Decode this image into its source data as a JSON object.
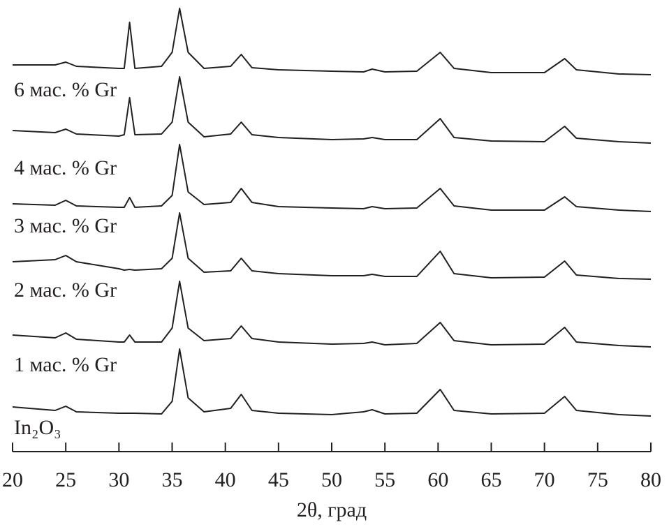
{
  "chart_data": {
    "type": "line",
    "x_label": "2θ, град",
    "xlim": [
      20,
      80
    ],
    "xticks": [
      20,
      25,
      30,
      35,
      40,
      45,
      50,
      55,
      60,
      65,
      70,
      75,
      80
    ],
    "ylim": [
      0,
      647
    ],
    "x": [
      20,
      24,
      25,
      26,
      30,
      30.5,
      31,
      31.5,
      34,
      35,
      35.7,
      36.5,
      38,
      40.5,
      41.5,
      42.5,
      45,
      50,
      53,
      53.8,
      55,
      58,
      60.2,
      61.5,
      65,
      70,
      71.9,
      73,
      77,
      80
    ],
    "series": [
      {
        "name": "6 мас. % Gr",
        "color": "#231f20",
        "values": [
          554,
          554,
          558,
          552,
          549,
          549,
          615,
          549,
          552,
          572,
          635,
          572,
          549,
          552,
          569,
          550,
          547,
          545,
          544,
          548,
          544,
          545,
          572,
          549,
          543,
          543,
          563,
          547,
          541,
          540
        ]
      },
      {
        "name": "4 мас. % Gr",
        "color": "#231f20",
        "values": [
          460,
          457,
          462,
          455,
          452,
          454,
          507,
          454,
          455,
          472,
          537,
          472,
          451,
          455,
          472,
          454,
          450,
          447,
          448,
          450,
          447,
          447,
          477,
          450,
          445,
          444,
          466,
          449,
          444,
          442
        ]
      },
      {
        "name": "3 мас. % Gr",
        "color": "#231f20",
        "values": [
          355,
          353,
          360,
          352,
          350,
          350,
          364,
          350,
          352,
          367,
          440,
          372,
          354,
          357,
          377,
          357,
          351,
          349,
          348,
          351,
          348,
          349,
          377,
          352,
          346,
          346,
          365,
          351,
          346,
          344
        ]
      },
      {
        "name": "2 мас. % Gr",
        "color": "#231f20",
        "values": [
          272,
          275,
          281,
          272,
          262,
          260,
          261,
          260,
          262,
          277,
          342,
          277,
          257,
          259,
          277,
          259,
          255,
          252,
          252,
          254,
          251,
          251,
          287,
          255,
          249,
          250,
          273,
          253,
          248,
          247
        ]
      },
      {
        "name": "1 мас. % Gr",
        "color": "#231f20",
        "values": [
          167,
          163,
          170,
          161,
          157,
          157,
          167,
          157,
          157,
          177,
          244,
          177,
          159,
          162,
          180,
          162,
          157,
          154,
          155,
          157,
          153,
          155,
          185,
          159,
          153,
          154,
          178,
          157,
          152,
          150
        ]
      },
      {
        "name": "In₂O₃",
        "color": "#231f20",
        "values": [
          64,
          59,
          65,
          57,
          55,
          55,
          55,
          55,
          54,
          72,
          147,
          77,
          57,
          62,
          82,
          59,
          55,
          53,
          57,
          60,
          54,
          55,
          89,
          59,
          54,
          55,
          79,
          59,
          53,
          51
        ]
      }
    ]
  }
}
